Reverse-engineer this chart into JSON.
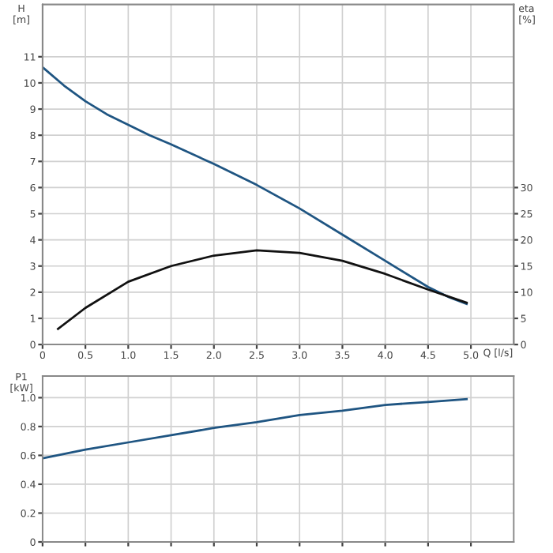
{
  "chart_data": [
    {
      "type": "line",
      "xlabel": "Q [l/s]",
      "ylabel": "H\n[m]",
      "y2label": "eta\n[%]",
      "xlim": [
        0,
        5.5
      ],
      "xticks": [
        0,
        {
          "value": 0.5,
          "label": "0.5"
        },
        {
          "value": 1.0,
          "label": "1.0"
        },
        {
          "value": 1.5,
          "label": "1.5"
        },
        {
          "value": 2.0,
          "label": "2.0"
        },
        {
          "value": 2.5,
          "label": "2.5"
        },
        {
          "value": 3.0,
          "label": "3.0"
        },
        {
          "value": 3.5,
          "label": "3.5"
        },
        {
          "value": 4.0,
          "label": "4.0"
        },
        {
          "value": 4.5,
          "label": "4.5"
        },
        {
          "value": 5.0,
          "label": "5.0"
        }
      ],
      "ylim": [
        0,
        13
      ],
      "yticks": [
        0,
        1,
        2,
        3,
        4,
        5,
        6,
        7,
        8,
        9,
        10,
        11
      ],
      "y2lim": [
        0,
        65
      ],
      "y2ticks": [
        0,
        5,
        10,
        15,
        20,
        25,
        30
      ],
      "grid": true,
      "series": [
        {
          "color": "#1f5582",
          "x": [
            0,
            0.25,
            0.5,
            0.75,
            1.0,
            1.25,
            1.5,
            2.0,
            2.5,
            3.0,
            3.5,
            4.0,
            4.5,
            4.75,
            4.95
          ],
          "values": [
            10.6,
            9.9,
            9.3,
            8.8,
            8.4,
            8.0,
            7.65,
            6.9,
            6.1,
            5.2,
            4.2,
            3.2,
            2.2,
            1.8,
            1.55
          ]
        },
        {
          "color": "#111111",
          "axis": "y2",
          "x": [
            0.18,
            0.5,
            1.0,
            1.5,
            2.0,
            2.5,
            3.0,
            3.5,
            4.0,
            4.5,
            4.95
          ],
          "values": [
            3,
            7,
            12,
            15,
            17,
            18,
            17.5,
            16,
            13.5,
            10.5,
            8
          ]
        }
      ]
    },
    {
      "type": "line",
      "ylabel": "P1\n[kW]",
      "tick_labels": "y",
      "xlim": [
        0,
        5.5
      ],
      "xticks": [
        0,
        0.5,
        1.0,
        1.5,
        2.0,
        2.5,
        3.0,
        3.5,
        4.0,
        4.5,
        5.0
      ],
      "ylim": [
        0,
        1.15
      ],
      "yticks": [
        0,
        {
          "value": 0.2,
          "label": "0.2"
        },
        {
          "value": 0.4,
          "label": "0.4"
        },
        {
          "value": 0.6,
          "label": "0.6"
        },
        {
          "value": 0.8,
          "label": "0.8"
        },
        {
          "value": 1.0,
          "label": "1.0"
        }
      ],
      "grid": true,
      "series": [
        {
          "color": "#1f5582",
          "x": [
            0,
            0.5,
            1.0,
            1.5,
            2.0,
            2.5,
            3.0,
            3.5,
            4.0,
            4.5,
            4.95
          ],
          "values": [
            0.58,
            0.64,
            0.69,
            0.74,
            0.79,
            0.83,
            0.88,
            0.91,
            0.95,
            0.97,
            0.99
          ]
        }
      ]
    }
  ]
}
